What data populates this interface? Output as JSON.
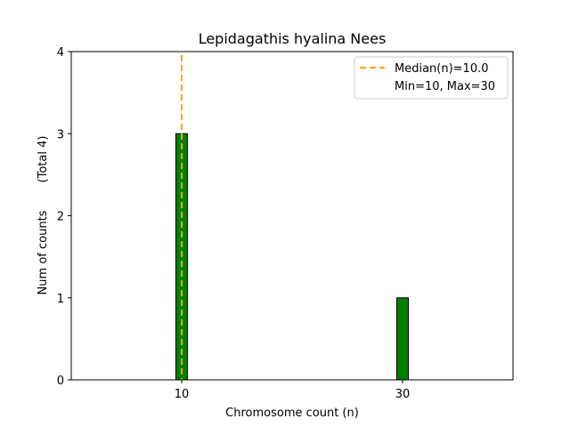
{
  "chart_data": {
    "type": "bar",
    "title": "Lepidagathis hyalina Nees",
    "xlabel": "Chromosome count (n)",
    "ylabel": "Num of counts",
    "ylabel_note": "(Total 4)",
    "categories": [
      "10",
      "30"
    ],
    "x": [
      10,
      30
    ],
    "values": [
      3,
      1
    ],
    "xlim": [
      0,
      40
    ],
    "ylim": [
      0,
      4
    ],
    "yticks": [
      0,
      1,
      2,
      3,
      4
    ],
    "xticks": [
      10,
      30
    ],
    "bar_color": "#008000",
    "median": 10.0,
    "median_color": "#FFA500",
    "legend": {
      "placement": "top-right",
      "median_label": "Median(n)=10.0",
      "range_label": "Min=10, Max=30"
    },
    "grid": false
  }
}
